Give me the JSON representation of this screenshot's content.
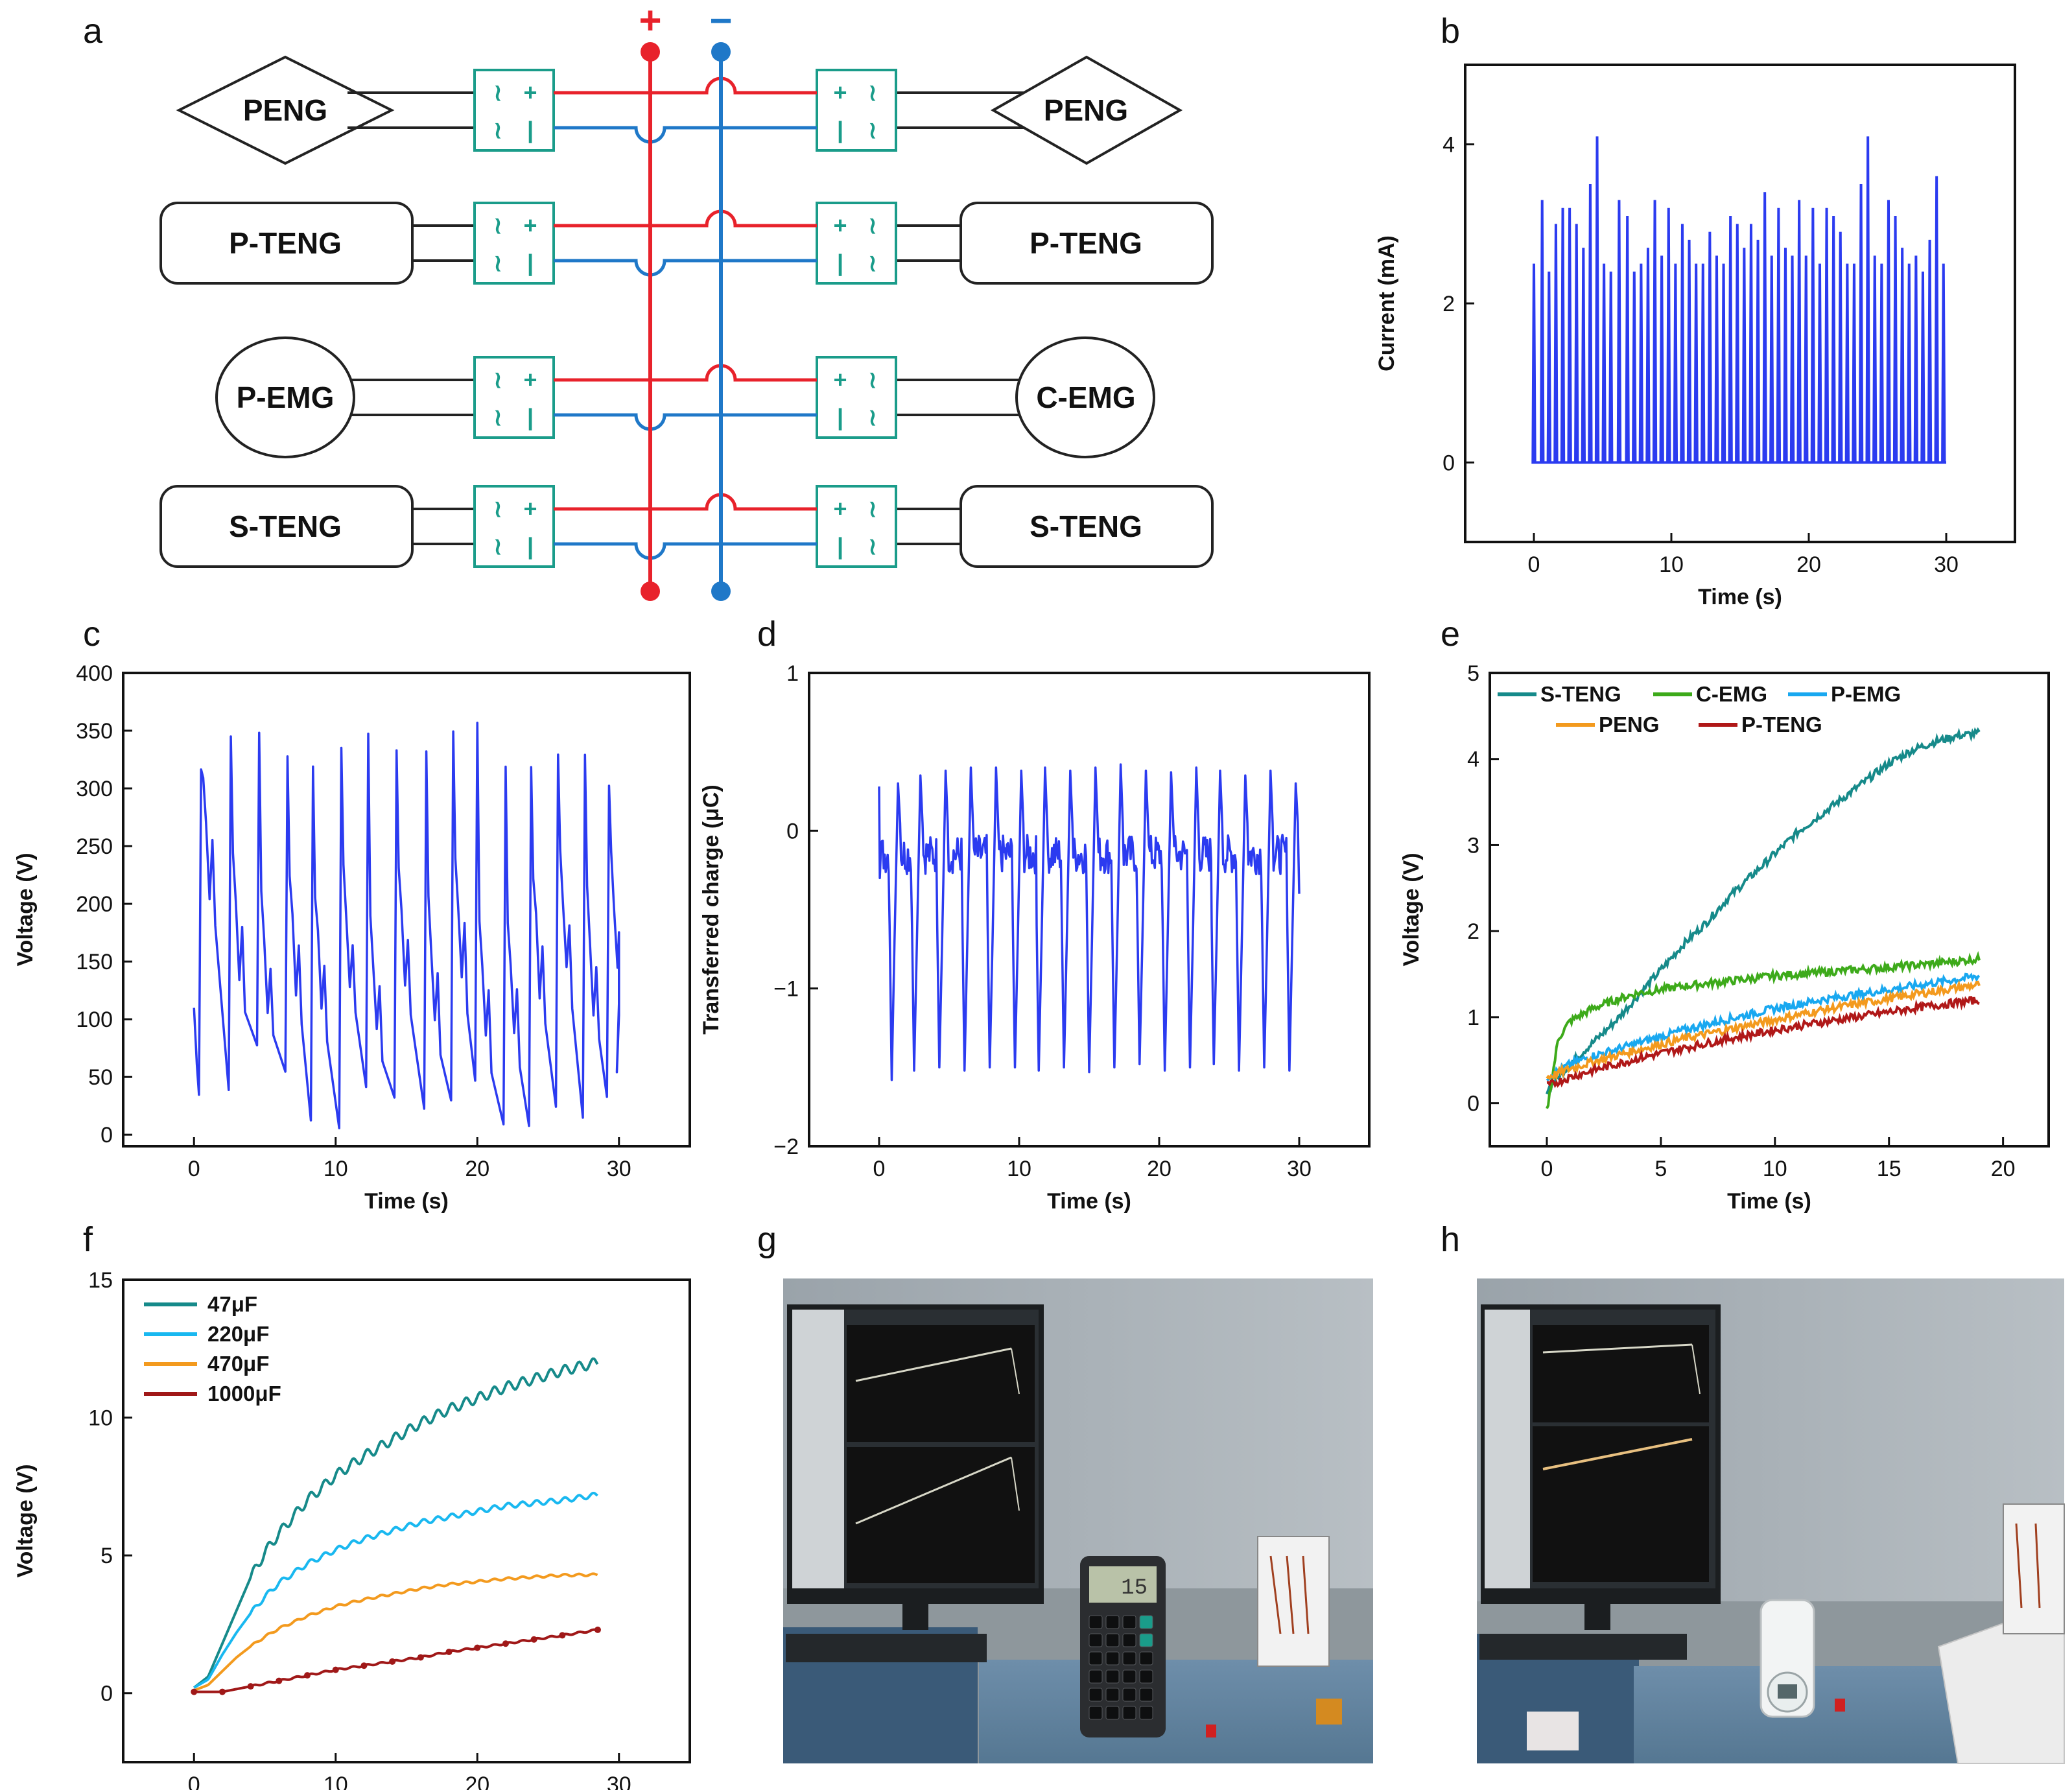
{
  "panel_labels": [
    "a",
    "b",
    "c",
    "d",
    "e",
    "f",
    "g",
    "h"
  ],
  "circuit": {
    "plus_sign": "+",
    "minus_sign": "−",
    "rows": [
      {
        "left": "PENG",
        "right": "PENG",
        "shape": "diamond"
      },
      {
        "left": "P-TENG",
        "right": "P-TENG",
        "shape": "rect"
      },
      {
        "left": "P-EMG",
        "right": "C-EMG",
        "shape": "circle"
      },
      {
        "left": "S-TENG",
        "right": "S-TENG",
        "shape": "rect"
      }
    ],
    "rectifier_left_symbols": [
      "≀",
      "+",
      "≀",
      "|"
    ],
    "rectifier_right_symbols": [
      "+",
      "≀",
      "|",
      "≀"
    ],
    "colors": {
      "positive": "#e8222b",
      "negative": "#1f78c8",
      "rectifier": "#1a9c8a",
      "wire": "#222222"
    }
  },
  "photos": {
    "g": {
      "calculator_display": "15",
      "description_label": "calculator"
    },
    "h": {
      "description_label": "hygrometer"
    }
  },
  "chart_data": [
    {
      "id": "b",
      "type": "line",
      "title": "",
      "xlabel": "Time (s)",
      "ylabel": "Current (mA)",
      "xlim": [
        -5,
        35
      ],
      "ylim": [
        -1,
        5
      ],
      "xticks": [
        0,
        10,
        20,
        30
      ],
      "yticks": [
        0,
        2,
        4
      ],
      "series": [
        {
          "name": "Current",
          "color": "#2b3bf0",
          "kind": "spikes",
          "x": [
            0.0,
            0.6,
            1.1,
            1.6,
            2.1,
            2.6,
            3.1,
            3.6,
            4.1,
            4.6,
            5.1,
            5.6,
            6.2,
            6.8,
            7.3,
            7.8,
            8.3,
            8.8,
            9.3,
            9.8,
            10.3,
            10.8,
            11.3,
            11.8,
            12.3,
            12.8,
            13.3,
            13.8,
            14.3,
            14.8,
            15.3,
            15.8,
            16.3,
            16.8,
            17.3,
            17.8,
            18.3,
            18.8,
            19.3,
            19.8,
            20.3,
            20.8,
            21.3,
            21.8,
            22.3,
            22.8,
            23.3,
            23.8,
            24.3,
            24.8,
            25.3,
            25.8,
            26.3,
            26.8,
            27.3,
            27.8,
            28.3,
            28.8,
            29.3,
            29.8
          ],
          "y": [
            2.5,
            3.3,
            2.4,
            3.0,
            3.2,
            3.2,
            3.0,
            2.7,
            3.5,
            4.1,
            2.5,
            2.4,
            3.3,
            3.1,
            2.4,
            2.5,
            2.7,
            3.3,
            2.6,
            3.2,
            2.5,
            3.0,
            2.8,
            2.5,
            2.5,
            2.9,
            2.6,
            2.5,
            3.1,
            3.0,
            2.7,
            3.0,
            2.8,
            3.4,
            2.6,
            3.2,
            2.7,
            2.6,
            3.3,
            2.6,
            3.2,
            2.5,
            3.2,
            3.1,
            2.9,
            2.5,
            2.5,
            3.5,
            4.1,
            2.6,
            2.5,
            3.3,
            3.1,
            2.7,
            2.5,
            2.6,
            2.4,
            2.8,
            3.6,
            2.5
          ]
        }
      ]
    },
    {
      "id": "c",
      "type": "line",
      "title": "",
      "xlabel": "Time (s)",
      "ylabel": "Voltage (V)",
      "xlim": [
        -5,
        35
      ],
      "ylim": [
        -10,
        400
      ],
      "xticks": [
        0,
        10,
        20,
        30
      ],
      "yticks": [
        0,
        50,
        100,
        150,
        200,
        250,
        300,
        350,
        400
      ],
      "series": [
        {
          "name": "Voltage",
          "color": "#2b3bf0",
          "kind": "sawtooth",
          "x_start": 0,
          "x_end": 30,
          "peak_times": [
            0.5,
            2.6,
            4.6,
            6.6,
            8.4,
            10.4,
            12.3,
            14.3,
            16.4,
            18.3,
            20.0,
            22.0,
            23.8,
            25.7,
            27.6,
            29.3
          ],
          "peak_values": [
            320,
            348,
            353,
            333,
            322,
            340,
            342,
            338,
            330,
            350,
            353,
            318,
            315,
            335,
            325,
            300
          ],
          "trough_values": [
            40,
            75,
            48,
            10,
            8,
            45,
            30,
            20,
            25,
            50,
            7,
            5,
            25,
            20,
            30,
            60
          ],
          "secondary_peaks": [
            270,
            200,
            170,
            185,
            170,
            190,
            150,
            195,
            160,
            200,
            140,
            150,
            185,
            200,
            170,
            200
          ]
        }
      ]
    },
    {
      "id": "d",
      "type": "line",
      "title": "",
      "xlabel": "Time (s)",
      "ylabel": "Transferred charge (μC)",
      "xlim": [
        -5,
        35
      ],
      "ylim": [
        -2,
        1
      ],
      "xticks": [
        0,
        10,
        20,
        30
      ],
      "yticks": [
        -2,
        -1,
        0,
        1
      ],
      "series": [
        {
          "name": "Charge",
          "color": "#2b3bf0",
          "kind": "charge",
          "x_start": 0,
          "x_end": 30,
          "event_times": [
            0.9,
            2.5,
            4.3,
            6.1,
            7.9,
            9.7,
            11.4,
            13.2,
            15.0,
            16.8,
            18.6,
            20.4,
            22.2,
            23.9,
            25.7,
            27.5,
            29.3
          ],
          "min_values": [
            -1.58,
            -1.52,
            -1.5,
            -1.52,
            -1.5,
            -1.5,
            -1.52,
            -1.5,
            -1.53,
            -1.5,
            -1.48,
            -1.52,
            -1.5,
            -1.48,
            -1.52,
            -1.5,
            -1.52
          ],
          "max_values": [
            0.3,
            0.35,
            0.38,
            0.4,
            0.4,
            0.38,
            0.4,
            0.38,
            0.4,
            0.42,
            0.38,
            0.37,
            0.4,
            0.38,
            0.35,
            0.38,
            0.3
          ]
        }
      ]
    },
    {
      "id": "e",
      "type": "line",
      "title": "",
      "xlabel": "Time (s)",
      "ylabel": "Voltage (V)",
      "xlim": [
        -2.5,
        22
      ],
      "ylim": [
        -0.5,
        5
      ],
      "xticks": [
        0,
        5,
        10,
        15,
        20
      ],
      "yticks": [
        0,
        1,
        2,
        3,
        4,
        5
      ],
      "legend": "top-left",
      "series": [
        {
          "name": "S-TENG",
          "color": "#168a8a",
          "x": [
            0,
            1,
            2,
            3,
            4,
            5,
            6,
            7,
            8,
            9,
            10,
            11,
            12,
            13,
            14,
            15,
            16,
            17,
            18,
            19
          ],
          "y": [
            0.15,
            0.45,
            0.7,
            0.95,
            1.25,
            1.55,
            1.85,
            2.1,
            2.4,
            2.65,
            2.9,
            3.15,
            3.35,
            3.55,
            3.75,
            3.95,
            4.1,
            4.2,
            4.27,
            4.3
          ]
        },
        {
          "name": "C-EMG",
          "color": "#3daa1a",
          "x": [
            0,
            0.5,
            1,
            2,
            3,
            4,
            5,
            6,
            8,
            10,
            12,
            14,
            16,
            18,
            19
          ],
          "y": [
            -0.1,
            0.75,
            0.95,
            1.1,
            1.2,
            1.28,
            1.32,
            1.36,
            1.42,
            1.48,
            1.52,
            1.56,
            1.6,
            1.65,
            1.68
          ]
        },
        {
          "name": "P-EMG",
          "color": "#19a8f0",
          "x": [
            0,
            1,
            2,
            3,
            4,
            6,
            8,
            10,
            12,
            14,
            16,
            18,
            19
          ],
          "y": [
            0.3,
            0.45,
            0.55,
            0.62,
            0.7,
            0.85,
            0.98,
            1.1,
            1.2,
            1.28,
            1.36,
            1.44,
            1.48
          ]
        },
        {
          "name": "PENG",
          "color": "#f39a1e",
          "x": [
            0,
            1,
            2,
            3,
            4,
            6,
            8,
            10,
            12,
            14,
            16,
            18,
            19
          ],
          "y": [
            0.3,
            0.4,
            0.48,
            0.55,
            0.62,
            0.75,
            0.86,
            0.97,
            1.08,
            1.17,
            1.26,
            1.34,
            1.38
          ]
        },
        {
          "name": "P-TENG",
          "color": "#b01818",
          "x": [
            0,
            1,
            2,
            3,
            4,
            6,
            8,
            10,
            12,
            14,
            16,
            18,
            19
          ],
          "y": [
            0.2,
            0.3,
            0.38,
            0.45,
            0.52,
            0.64,
            0.75,
            0.85,
            0.94,
            1.02,
            1.1,
            1.17,
            1.2
          ]
        }
      ]
    },
    {
      "id": "f",
      "type": "line",
      "title": "",
      "xlabel": "",
      "ylabel": "Voltage (V)",
      "xlim": [
        -5,
        35
      ],
      "ylim": [
        -2.5,
        15
      ],
      "xticks": [
        0,
        10,
        20,
        30
      ],
      "yticks": [
        0,
        5,
        10,
        15
      ],
      "legend": "top-left",
      "series": [
        {
          "name": "47μF",
          "color": "#168a8a",
          "x": [
            0,
            1,
            2,
            3,
            4,
            5,
            6,
            8,
            10,
            12,
            14,
            16,
            18,
            20,
            22,
            24,
            26,
            28.5
          ],
          "y": [
            0.2,
            0.6,
            1.8,
            3.0,
            4.2,
            5.1,
            5.8,
            7.0,
            7.9,
            8.6,
            9.2,
            9.8,
            10.3,
            10.7,
            11.1,
            11.4,
            11.7,
            12.0
          ]
        },
        {
          "name": "220μF",
          "color": "#19b8f0",
          "x": [
            0,
            1,
            2,
            3,
            4,
            5,
            6,
            8,
            10,
            12,
            14,
            16,
            18,
            20,
            22,
            24,
            26,
            28.5
          ],
          "y": [
            0.2,
            0.5,
            1.4,
            2.2,
            2.9,
            3.5,
            4.0,
            4.7,
            5.2,
            5.6,
            5.9,
            6.2,
            6.4,
            6.6,
            6.8,
            6.9,
            7.0,
            7.2
          ]
        },
        {
          "name": "470μF",
          "color": "#f39a1e",
          "x": [
            0,
            1,
            2,
            3,
            4,
            5,
            6,
            8,
            10,
            12,
            14,
            16,
            18,
            20,
            22,
            24,
            26,
            28.5
          ],
          "y": [
            0.1,
            0.3,
            0.8,
            1.3,
            1.7,
            2.05,
            2.35,
            2.8,
            3.15,
            3.4,
            3.6,
            3.8,
            3.95,
            4.05,
            4.15,
            4.22,
            4.28,
            4.3
          ]
        },
        {
          "name": "1000μF",
          "color": "#a01818",
          "x": [
            0,
            2,
            4,
            6,
            8,
            10,
            12,
            14,
            16,
            18,
            20,
            22,
            24,
            26,
            28.5
          ],
          "y": [
            0.05,
            0.05,
            0.25,
            0.45,
            0.65,
            0.85,
            1.0,
            1.15,
            1.3,
            1.5,
            1.65,
            1.8,
            1.95,
            2.1,
            2.3
          ]
        }
      ]
    }
  ]
}
